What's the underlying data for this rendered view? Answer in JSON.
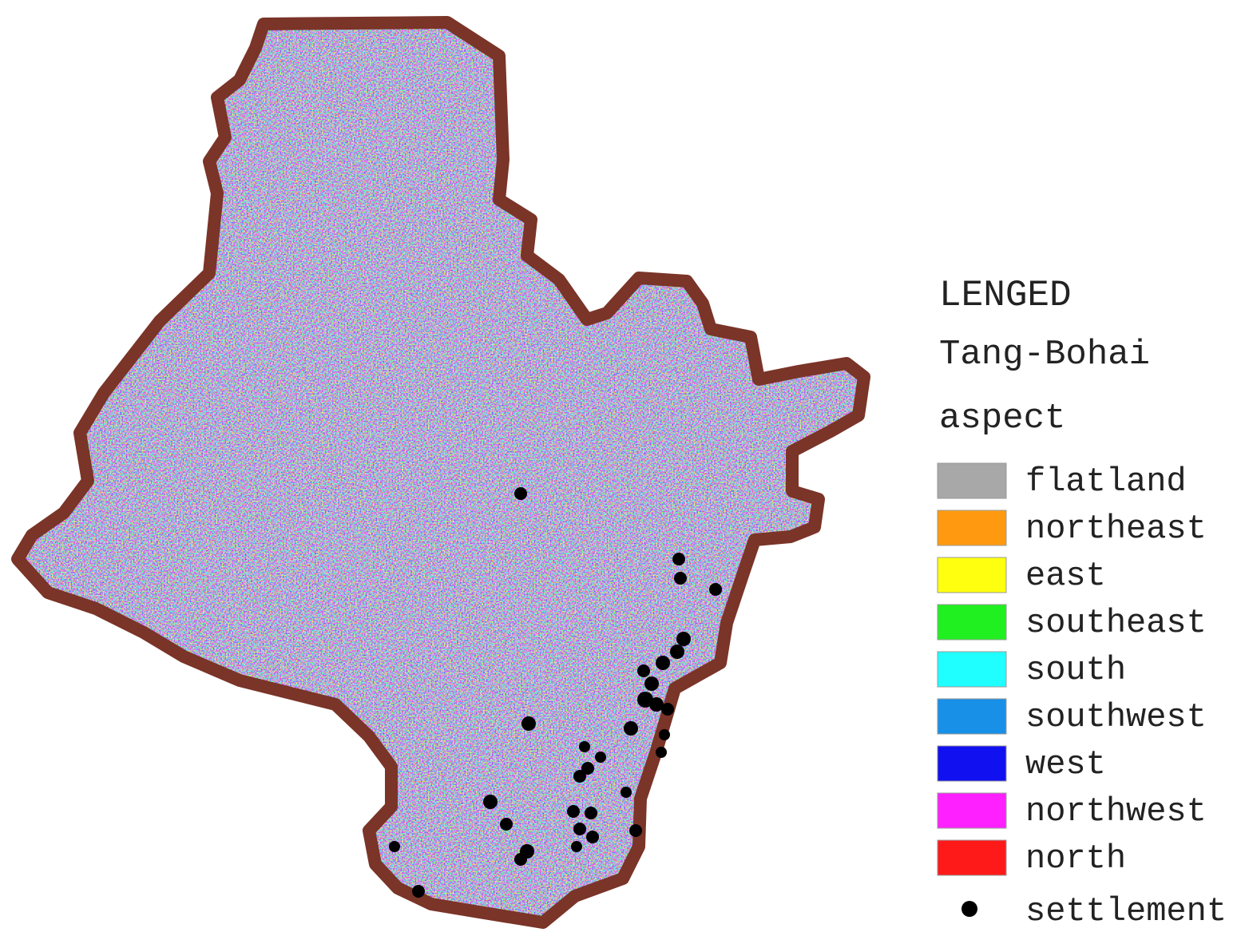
{
  "legend": {
    "title": "LENGED",
    "region": "Tang-Bohai",
    "layer": "aspect",
    "items": [
      {
        "label": "flatland",
        "color": "#a8a8a8"
      },
      {
        "label": "northeast",
        "color": "#ff9a10"
      },
      {
        "label": "east",
        "color": "#ffff10"
      },
      {
        "label": "southeast",
        "color": "#20f020"
      },
      {
        "label": "south",
        "color": "#20ffff"
      },
      {
        "label": "southwest",
        "color": "#1890e8"
      },
      {
        "label": "west",
        "color": "#1010f0"
      },
      {
        "label": "northwest",
        "color": "#ff20ff"
      },
      {
        "label": "north",
        "color": "#ff1a1a"
      }
    ],
    "point_label": "settlement"
  }
}
